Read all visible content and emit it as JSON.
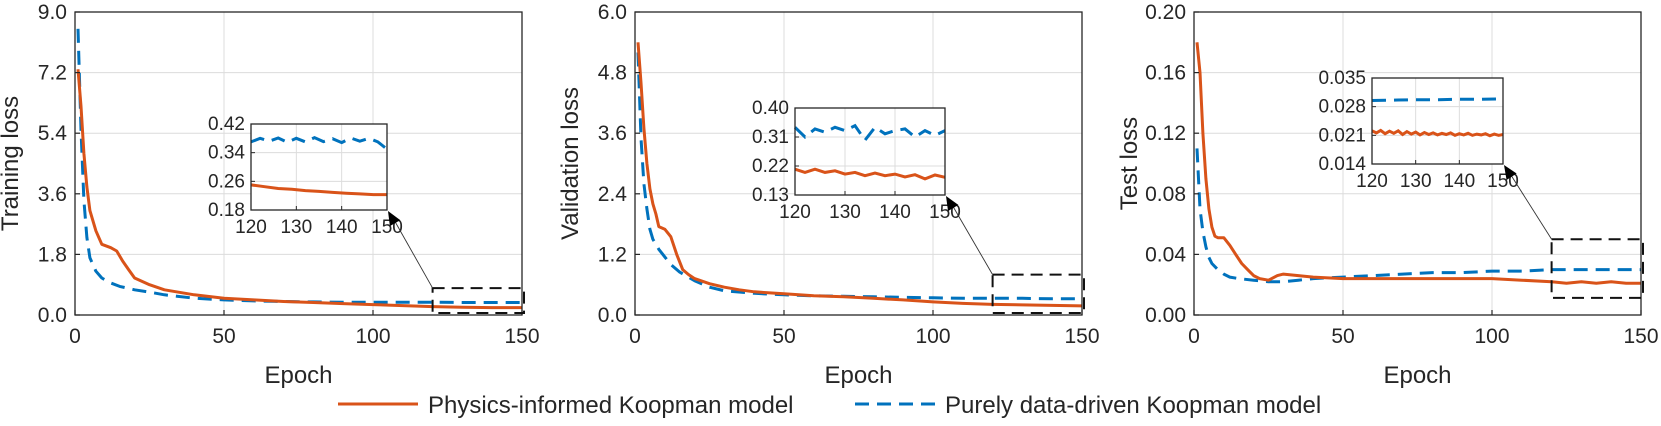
{
  "colors": {
    "physics": "#d95319",
    "data": "#0072bd",
    "grid": "#dcdcdc",
    "axis": "#262626"
  },
  "legend": {
    "physics_label": "Physics-informed Koopman model",
    "data_label": "Purely data-driven Koopman model"
  },
  "chart_data": [
    {
      "type": "line",
      "title": "",
      "xlabel": "Epoch",
      "ylabel": "Training loss",
      "xlim": [
        0,
        150
      ],
      "ylim": [
        0,
        9
      ],
      "xticks": [
        "0",
        "50",
        "100",
        "150"
      ],
      "yticks": [
        "0.0",
        "1.8",
        "3.6",
        "5.4",
        "7.2",
        "9.0"
      ],
      "series": [
        {
          "name": "Physics-informed Koopman model",
          "x": [
            1,
            2,
            3,
            4,
            5,
            7,
            9,
            12,
            14,
            16,
            18,
            20,
            25,
            30,
            40,
            50,
            60,
            70,
            80,
            90,
            100,
            110,
            120,
            130,
            140,
            150
          ],
          "y": [
            7.3,
            6.2,
            4.8,
            3.8,
            3.1,
            2.5,
            2.1,
            2.0,
            1.9,
            1.6,
            1.35,
            1.1,
            0.9,
            0.75,
            0.6,
            0.5,
            0.45,
            0.4,
            0.37,
            0.34,
            0.31,
            0.28,
            0.25,
            0.23,
            0.22,
            0.22
          ]
        },
        {
          "name": "Purely data-driven Koopman model",
          "x": [
            1,
            2,
            3,
            4,
            5,
            7,
            9,
            12,
            15,
            20,
            25,
            30,
            40,
            50,
            60,
            70,
            80,
            90,
            100,
            110,
            120,
            130,
            140,
            150
          ],
          "y": [
            8.5,
            5.5,
            3.4,
            2.3,
            1.7,
            1.3,
            1.1,
            0.95,
            0.85,
            0.75,
            0.68,
            0.6,
            0.5,
            0.45,
            0.42,
            0.4,
            0.39,
            0.38,
            0.38,
            0.38,
            0.38,
            0.37,
            0.37,
            0.37
          ]
        }
      ],
      "inset": {
        "xlim": [
          120,
          150
        ],
        "ylim": [
          0.18,
          0.42
        ],
        "xticks": [
          "120",
          "130",
          "140",
          "150"
        ],
        "yticks": [
          "0.18",
          "0.26",
          "0.34",
          "0.42"
        ],
        "physics": {
          "x": [
            120,
            123,
            126,
            129,
            132,
            135,
            138,
            141,
            144,
            147,
            150
          ],
          "y": [
            0.25,
            0.245,
            0.24,
            0.238,
            0.234,
            0.232,
            0.229,
            0.227,
            0.225,
            0.223,
            0.223
          ]
        },
        "data": {
          "x": [
            120,
            122,
            124,
            126,
            128,
            130,
            132,
            134,
            136,
            138,
            140,
            142,
            144,
            146,
            148,
            150
          ],
          "y": [
            0.37,
            0.38,
            0.372,
            0.381,
            0.369,
            0.38,
            0.37,
            0.382,
            0.371,
            0.379,
            0.368,
            0.381,
            0.372,
            0.38,
            0.37,
            0.35
          ]
        }
      },
      "zoom_box": {
        "xlim": [
          120,
          150
        ],
        "ylim": [
          0.0,
          0.8
        ]
      }
    },
    {
      "type": "line",
      "title": "",
      "xlabel": "Epoch",
      "ylabel": "Validation loss",
      "xlim": [
        0,
        150
      ],
      "ylim": [
        0,
        6
      ],
      "xticks": [
        "0",
        "50",
        "100",
        "150"
      ],
      "yticks": [
        "0.0",
        "1.2",
        "2.4",
        "3.6",
        "4.8",
        "6.0"
      ],
      "series": [
        {
          "name": "Physics-informed Koopman model",
          "x": [
            1,
            2,
            3,
            4,
            5,
            6,
            7,
            8,
            10,
            12,
            14,
            16,
            18,
            20,
            25,
            30,
            35,
            40,
            50,
            60,
            70,
            80,
            90,
            100,
            110,
            120,
            130,
            140,
            150
          ],
          "y": [
            5.4,
            4.6,
            3.7,
            3.0,
            2.5,
            2.2,
            2.0,
            1.75,
            1.7,
            1.55,
            1.2,
            0.9,
            0.8,
            0.72,
            0.62,
            0.55,
            0.5,
            0.46,
            0.42,
            0.38,
            0.36,
            0.33,
            0.3,
            0.26,
            0.23,
            0.21,
            0.2,
            0.19,
            0.18
          ]
        },
        {
          "name": "Purely data-driven Koopman model",
          "x": [
            1,
            2,
            3,
            4,
            5,
            6,
            8,
            10,
            12,
            15,
            20,
            25,
            30,
            40,
            50,
            60,
            70,
            80,
            90,
            100,
            110,
            120,
            130,
            140,
            150
          ],
          "y": [
            5.2,
            3.5,
            2.6,
            2.1,
            1.7,
            1.5,
            1.3,
            1.15,
            1.0,
            0.85,
            0.68,
            0.55,
            0.48,
            0.43,
            0.4,
            0.38,
            0.37,
            0.36,
            0.35,
            0.34,
            0.33,
            0.33,
            0.33,
            0.32,
            0.32
          ]
        }
      ],
      "inset": {
        "xlim": [
          120,
          150
        ],
        "ylim": [
          0.13,
          0.4
        ],
        "xticks": [
          "120",
          "130",
          "140",
          "150"
        ],
        "yticks": [
          "0.13",
          "0.22",
          "0.31",
          "0.40"
        ],
        "physics": {
          "x": [
            120,
            122,
            124,
            126,
            128,
            130,
            132,
            134,
            136,
            138,
            140,
            142,
            144,
            146,
            148,
            150
          ],
          "y": [
            0.21,
            0.2,
            0.21,
            0.2,
            0.205,
            0.195,
            0.2,
            0.19,
            0.198,
            0.19,
            0.195,
            0.186,
            0.193,
            0.18,
            0.192,
            0.185
          ]
        },
        "data": {
          "x": [
            120,
            122,
            124,
            126,
            128,
            130,
            132,
            134,
            136,
            138,
            140,
            142,
            144,
            146,
            148,
            150
          ],
          "y": [
            0.34,
            0.31,
            0.335,
            0.325,
            0.34,
            0.33,
            0.345,
            0.3,
            0.34,
            0.32,
            0.33,
            0.335,
            0.31,
            0.33,
            0.315,
            0.33
          ]
        }
      },
      "zoom_box": {
        "xlim": [
          120,
          150
        ],
        "ylim": [
          0.0,
          0.8
        ]
      }
    },
    {
      "type": "line",
      "title": "",
      "xlabel": "Epoch",
      "ylabel": "Test loss",
      "xlim": [
        0,
        150
      ],
      "ylim": [
        0,
        0.2
      ],
      "xticks": [
        "0",
        "50",
        "100",
        "150"
      ],
      "yticks": [
        "0.00",
        "0.04",
        "0.08",
        "0.12",
        "0.16",
        "0.20"
      ],
      "series": [
        {
          "name": "Physics-informed Koopman model",
          "x": [
            1,
            2,
            3,
            4,
            5,
            6,
            7,
            8,
            10,
            12,
            14,
            16,
            18,
            20,
            22,
            25,
            28,
            30,
            35,
            40,
            50,
            60,
            70,
            80,
            90,
            100,
            110,
            120,
            125,
            130,
            135,
            140,
            145,
            150
          ],
          "y": [
            0.18,
            0.16,
            0.12,
            0.09,
            0.07,
            0.058,
            0.052,
            0.051,
            0.051,
            0.046,
            0.04,
            0.034,
            0.03,
            0.026,
            0.024,
            0.023,
            0.026,
            0.027,
            0.026,
            0.025,
            0.024,
            0.024,
            0.024,
            0.024,
            0.024,
            0.024,
            0.023,
            0.022,
            0.021,
            0.022,
            0.021,
            0.022,
            0.021,
            0.021
          ]
        },
        {
          "name": "Purely data-driven Koopman model",
          "x": [
            1,
            2,
            3,
            4,
            5,
            6,
            8,
            10,
            12,
            15,
            20,
            25,
            30,
            35,
            40,
            50,
            60,
            70,
            80,
            90,
            100,
            110,
            120,
            130,
            140,
            150
          ],
          "y": [
            0.11,
            0.07,
            0.055,
            0.045,
            0.038,
            0.034,
            0.03,
            0.027,
            0.025,
            0.024,
            0.023,
            0.022,
            0.022,
            0.023,
            0.024,
            0.025,
            0.026,
            0.027,
            0.028,
            0.028,
            0.029,
            0.029,
            0.03,
            0.03,
            0.03,
            0.03
          ]
        }
      ],
      "inset": {
        "xlim": [
          120,
          150
        ],
        "ylim": [
          0.014,
          0.035
        ],
        "xticks": [
          "120",
          "130",
          "140",
          "150"
        ],
        "yticks": [
          "0.014",
          "0.021",
          "0.028",
          "0.035"
        ],
        "physics": {
          "x": [
            120,
            121,
            122,
            123,
            124,
            125,
            126,
            127,
            128,
            129,
            130,
            131,
            132,
            133,
            134,
            135,
            136,
            137,
            138,
            139,
            140,
            141,
            142,
            143,
            144,
            145,
            146,
            147,
            148,
            149,
            150
          ],
          "y": [
            0.0221,
            0.0216,
            0.0222,
            0.0214,
            0.022,
            0.0215,
            0.0221,
            0.0212,
            0.0219,
            0.0213,
            0.0218,
            0.0211,
            0.0217,
            0.0212,
            0.0216,
            0.0211,
            0.0215,
            0.0212,
            0.0216,
            0.021,
            0.0214,
            0.0211,
            0.0215,
            0.021,
            0.0213,
            0.0211,
            0.0214,
            0.0209,
            0.0213,
            0.021,
            0.0212
          ]
        },
        "data": {
          "x": [
            120,
            125,
            130,
            135,
            140,
            145,
            150
          ],
          "y": [
            0.0295,
            0.0296,
            0.0297,
            0.0297,
            0.0298,
            0.0298,
            0.0299
          ]
        }
      },
      "zoom_box": {
        "xlim": [
          120,
          150
        ],
        "ylim": [
          0.01,
          0.05
        ]
      }
    }
  ]
}
